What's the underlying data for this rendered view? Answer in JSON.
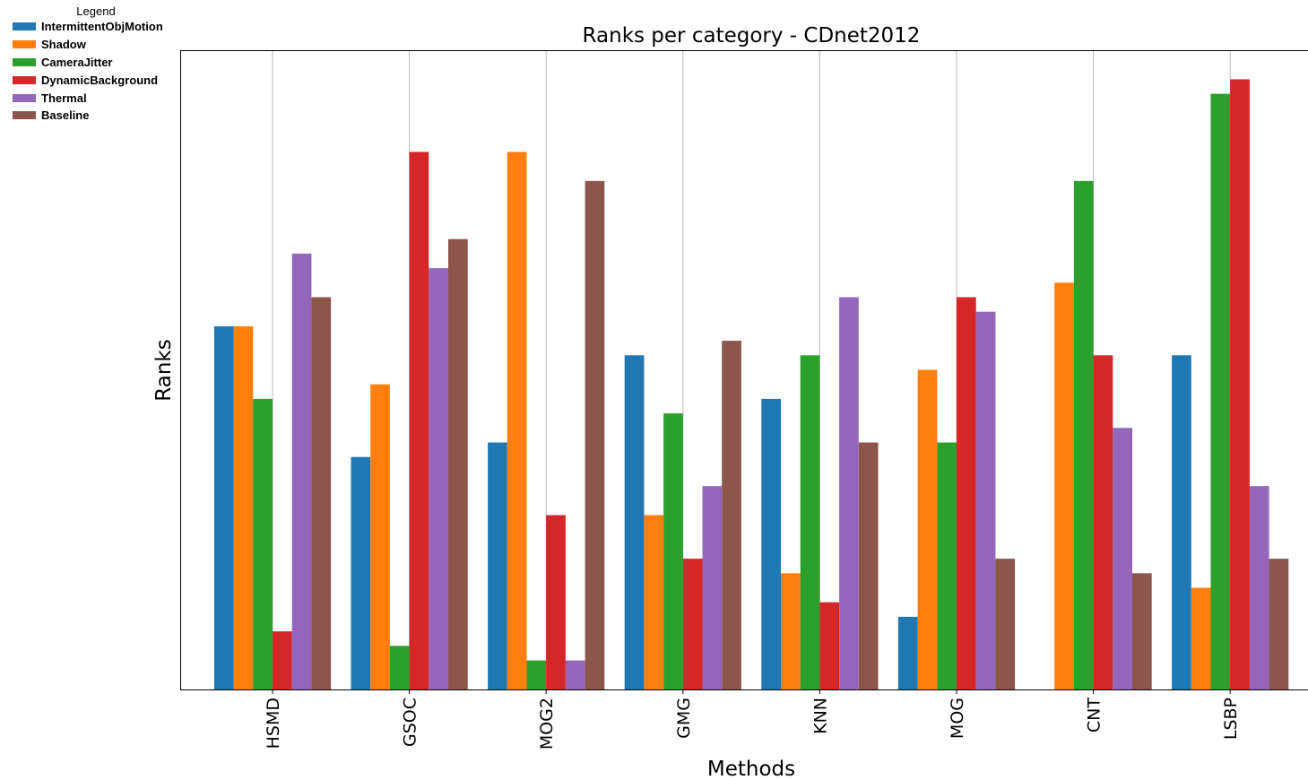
{
  "chart_data": {
    "type": "bar",
    "title": "Ranks per category - CDnet2012",
    "xlabel": "Methods",
    "ylabel": "Ranks",
    "legend_title": "Legend",
    "legend_position": "top-left",
    "grid": "vertical",
    "ylim": [
      0,
      44
    ],
    "categories": [
      "HSMD",
      "GSOC",
      "MOG2",
      "GMG",
      "KNN",
      "MOG",
      "CNT",
      "LSBP"
    ],
    "series": [
      {
        "name": "IntermittentObjMotion",
        "color": "#1f77b4",
        "values": [
          25,
          16,
          17,
          23,
          20,
          5,
          0,
          23
        ]
      },
      {
        "name": "Shadow",
        "color": "#ff7f0e",
        "values": [
          25,
          21,
          37,
          12,
          8,
          22,
          28,
          7
        ]
      },
      {
        "name": "CameraJitter",
        "color": "#2ca02c",
        "values": [
          20,
          3,
          2,
          19,
          23,
          17,
          35,
          41
        ]
      },
      {
        "name": "DynamicBackground",
        "color": "#d62728",
        "values": [
          4,
          37,
          12,
          9,
          6,
          27,
          23,
          42
        ]
      },
      {
        "name": "Thermal",
        "color": "#9467bd",
        "values": [
          30,
          29,
          2,
          14,
          27,
          26,
          18,
          14
        ]
      },
      {
        "name": "Baseline",
        "color": "#8c564b",
        "values": [
          27,
          31,
          35,
          24,
          17,
          9,
          8,
          9
        ]
      }
    ]
  }
}
